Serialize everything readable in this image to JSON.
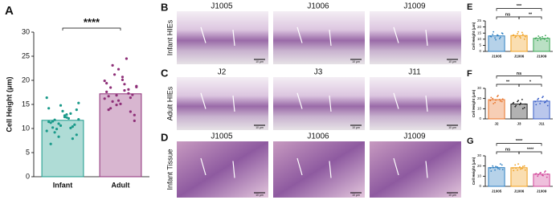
{
  "chart_data": [
    {
      "type": "bar",
      "panel": "A",
      "ylabel": "Cell Height (μm)",
      "categories": [
        "Infant",
        "Adult"
      ],
      "values": [
        11.7,
        17.2
      ],
      "colors": [
        "#1a9a8a",
        "#8e2f78"
      ],
      "ylim": [
        0,
        30
      ],
      "yticks": [
        0,
        5,
        10,
        15,
        20,
        25,
        30
      ],
      "significance": [
        "****"
      ],
      "points": [
        [
          9.5,
          10.2,
          11.0,
          12.4,
          13.1,
          8.7,
          14.2,
          11.8,
          10.6,
          12.9,
          7.9,
          15.3,
          11.2,
          9.9,
          13.6,
          12.1,
          10.8,
          16.4,
          11.5,
          8.3,
          12.7,
          10.1,
          13.9,
          11.4,
          9.2,
          14.8,
          12.3,
          10.4,
          11.9,
          6.8
        ],
        [
          16.2,
          18.5,
          14.9,
          20.1,
          17.3,
          12.8,
          19.4,
          15.6,
          22.3,
          17.9,
          13.5,
          18.8,
          16.7,
          21.2,
          15.1,
          24.5,
          17.0,
          19.9,
          14.2,
          16.9,
          20.7,
          18.1,
          11.6,
          17.6,
          23.1,
          15.8,
          19.2,
          16.4,
          18.6,
          13.9
        ]
      ]
    },
    {
      "type": "bar",
      "panel": "E",
      "ylabel": "Cell Height (μm)",
      "categories": [
        "J1005",
        "J1006",
        "J1009"
      ],
      "values": [
        12.7,
        13.0,
        10.7
      ],
      "colors": [
        "#2f7fc1",
        "#f0a020",
        "#3aa655"
      ],
      "ylim": [
        0,
        25
      ],
      "yticks": [
        0,
        5,
        10,
        15,
        20,
        25
      ],
      "significance": [
        "ns",
        "**",
        "***"
      ],
      "points": [
        [
          12.5,
          14,
          11,
          13.5,
          10.5,
          15,
          12,
          16,
          9.5,
          13,
          11.5,
          14.5
        ],
        [
          13,
          11.5,
          14.5,
          12,
          15.5,
          10,
          13.5,
          12.5,
          16,
          11,
          14,
          12
        ],
        [
          10.5,
          9,
          11.5,
          12,
          10,
          8.5,
          11,
          12.5,
          9.5,
          10.5,
          13,
          11
        ]
      ]
    },
    {
      "type": "bar",
      "panel": "F",
      "ylabel": "Cell Height (μm)",
      "categories": [
        "J2",
        "J3",
        "J11"
      ],
      "values": [
        18.9,
        14.6,
        17.4
      ],
      "colors": [
        "#e8742a",
        "#222222",
        "#3a5fc8"
      ],
      "ylim": [
        0,
        30
      ],
      "yticks": [
        0,
        10,
        20,
        30
      ],
      "significance": [
        "**",
        "*",
        "ns"
      ],
      "points": [
        [
          18,
          20,
          16,
          22,
          19,
          17,
          21,
          15,
          18.5,
          23,
          17.5,
          19.5
        ],
        [
          15,
          12,
          17,
          14,
          19,
          11,
          16,
          13,
          18,
          15.5,
          10,
          14.5
        ],
        [
          17,
          19,
          15,
          21,
          16,
          18,
          14,
          20,
          17.5,
          22,
          16.5,
          13
        ]
      ]
    },
    {
      "type": "bar",
      "panel": "G",
      "ylabel": "Cell Height (μm)",
      "categories": [
        "J1005",
        "J1006",
        "J1009"
      ],
      "values": [
        18.4,
        18.3,
        12.0
      ],
      "colors": [
        "#2f7fc1",
        "#f0a020",
        "#d2489a"
      ],
      "ylim": [
        0,
        30
      ],
      "yticks": [
        0,
        10,
        20,
        30
      ],
      "significance": [
        "ns",
        "****",
        "****"
      ],
      "points": [
        [
          18,
          20,
          16,
          19,
          17,
          21,
          15,
          18.5,
          19.5,
          17.5,
          22,
          16.5
        ],
        [
          18,
          21,
          16,
          19,
          17.5,
          20,
          15.5,
          18,
          22,
          17,
          19.5,
          16
        ],
        [
          12,
          10,
          13,
          11,
          14,
          9,
          12.5,
          11.5,
          13.5,
          10.5,
          15,
          12
        ]
      ]
    }
  ],
  "micrographs": [
    {
      "panel": "B",
      "row_label": "Infant HIEs",
      "titles": [
        "J1005",
        "J1006",
        "J1009"
      ],
      "scale": "10 μm"
    },
    {
      "panel": "C",
      "row_label": "Adult HIEs",
      "titles": [
        "J2",
        "J3",
        "J11"
      ],
      "scale": "10 μm"
    },
    {
      "panel": "D",
      "row_label": "Infant Tissue",
      "titles": [
        "J1005",
        "J1006",
        "J1009"
      ],
      "scale": "10 μm"
    }
  ]
}
